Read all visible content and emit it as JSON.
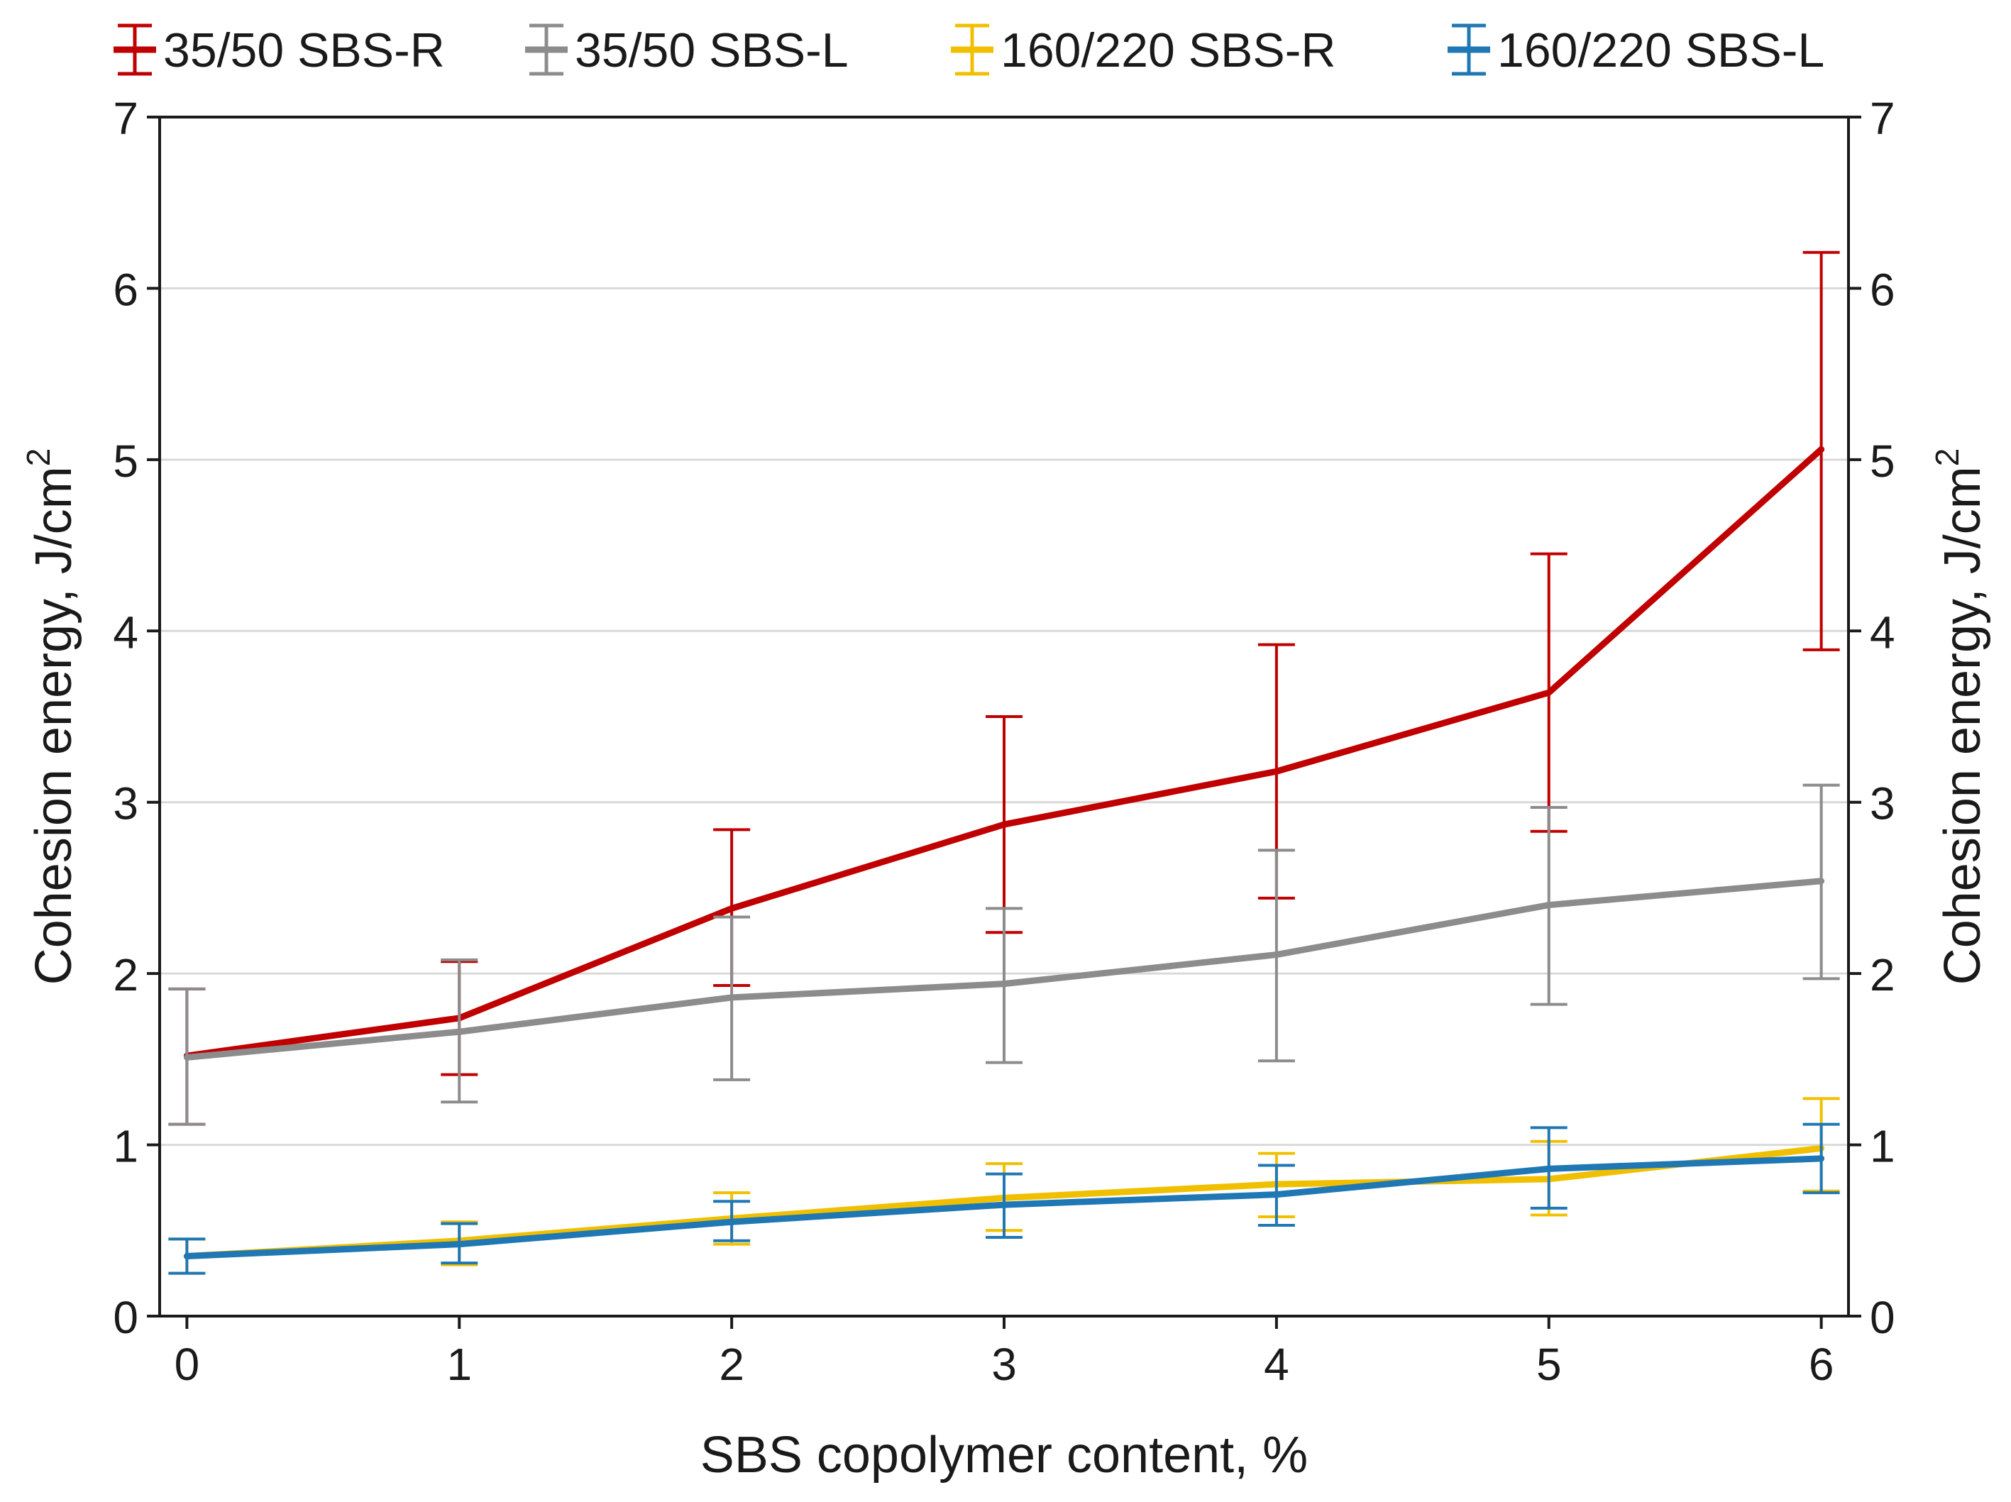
{
  "chart_data": {
    "type": "line",
    "xlabel": "SBS copolymer content, %",
    "ylabel": "Cohesion energy, J/cm",
    "ylabel_sup": "2",
    "x": [
      0,
      1,
      2,
      3,
      4,
      5,
      6
    ],
    "xlim": [
      -0.1,
      6.1
    ],
    "ylim": [
      0,
      7
    ],
    "xticks": [
      "0",
      "1",
      "2",
      "3",
      "4",
      "5",
      "6"
    ],
    "yticks": [
      "0",
      "1",
      "2",
      "3",
      "4",
      "5",
      "6",
      "7"
    ],
    "grid": "horizontal",
    "legend_position": "top",
    "error_bars": true,
    "series": [
      {
        "name": "35/50 SBS-R",
        "color": "#c00000",
        "values": [
          1.52,
          1.74,
          2.38,
          2.87,
          3.18,
          3.64,
          5.06
        ],
        "err_low": [
          1.12,
          1.41,
          1.93,
          2.24,
          2.44,
          2.83,
          3.89
        ],
        "err_high": [
          1.91,
          2.07,
          2.84,
          3.5,
          3.92,
          4.45,
          6.21
        ]
      },
      {
        "name": "35/50 SBS-L",
        "color": "#8c8c8c",
        "values": [
          1.51,
          1.66,
          1.86,
          1.94,
          2.11,
          2.4,
          2.54
        ],
        "err_low": [
          1.12,
          1.25,
          1.38,
          1.48,
          1.49,
          1.82,
          1.97
        ],
        "err_high": [
          1.91,
          2.08,
          2.33,
          2.38,
          2.72,
          2.97,
          3.1
        ]
      },
      {
        "name": "160/220 SBS-R",
        "color": "#f0c000",
        "values": [
          0.35,
          0.44,
          0.57,
          0.69,
          0.77,
          0.8,
          0.98
        ],
        "err_low": [
          0.25,
          0.3,
          0.42,
          0.5,
          0.58,
          0.59,
          0.73
        ],
        "err_high": [
          0.45,
          0.55,
          0.72,
          0.89,
          0.95,
          1.02,
          1.27
        ]
      },
      {
        "name": "160/220 SBS-L",
        "color": "#1f77b4",
        "values": [
          0.35,
          0.42,
          0.55,
          0.65,
          0.71,
          0.86,
          0.92
        ],
        "err_low": [
          0.25,
          0.31,
          0.44,
          0.46,
          0.53,
          0.63,
          0.72
        ],
        "err_high": [
          0.45,
          0.54,
          0.67,
          0.83,
          0.88,
          1.1,
          1.12
        ]
      }
    ]
  }
}
